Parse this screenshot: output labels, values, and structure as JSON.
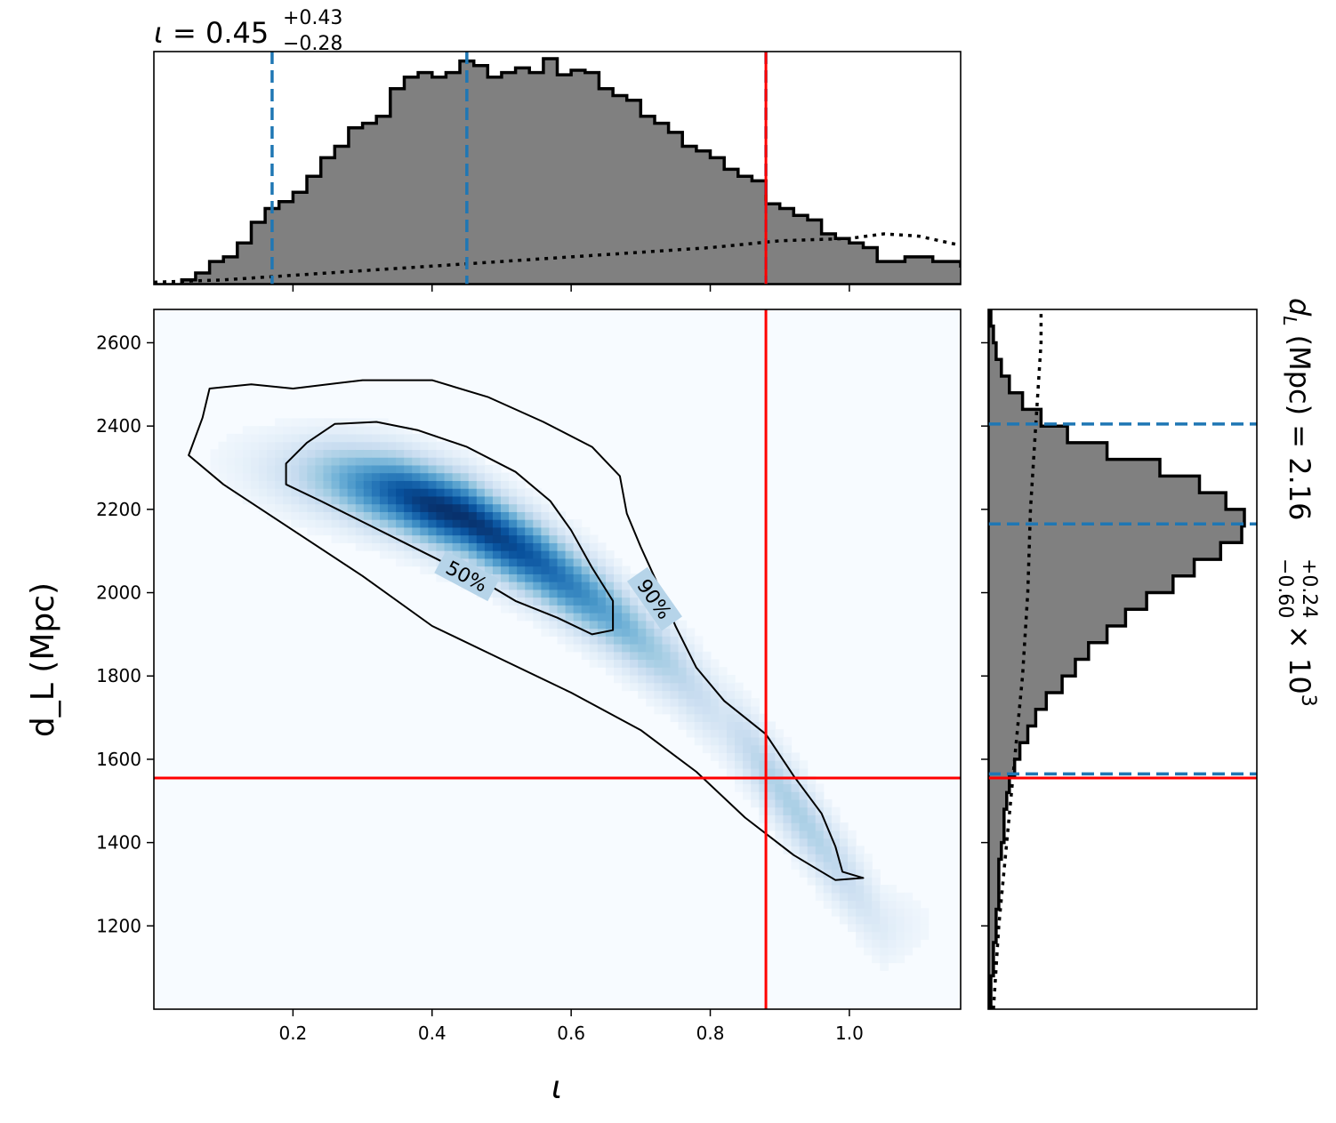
{
  "chart_data": {
    "type": "corner_plot",
    "parameters": [
      {
        "symbol": "ι",
        "range": [
          0.0,
          1.16
        ]
      },
      {
        "symbol": "d_L",
        "unit": "Mpc",
        "range": [
          1000,
          2680
        ]
      }
    ],
    "joint": {
      "type": "heatmap",
      "xlabel": "ι",
      "ylabel": "d_L (Mpc)",
      "xlim": [
        0.0,
        1.16
      ],
      "ylim": [
        1000,
        2680
      ],
      "xticks": [
        "0.2",
        "0.4",
        "0.6",
        "0.8",
        "1.0"
      ],
      "xtick_values": [
        0.2,
        0.4,
        0.6,
        0.8,
        1.0
      ],
      "yticks": [
        "1200",
        "1400",
        "1600",
        "1800",
        "2000",
        "2200",
        "2400",
        "2600"
      ],
      "ytick_values": [
        1200,
        1400,
        1600,
        1800,
        2000,
        2200,
        2400,
        2600
      ],
      "colormap": "Blues",
      "density_ridge": [
        [
          0.05,
          2330
        ],
        [
          0.15,
          2300
        ],
        [
          0.25,
          2280
        ],
        [
          0.35,
          2240
        ],
        [
          0.45,
          2180
        ],
        [
          0.55,
          2080
        ],
        [
          0.65,
          1960
        ],
        [
          0.75,
          1820
        ],
        [
          0.85,
          1640
        ],
        [
          0.95,
          1420
        ],
        [
          1.05,
          1200
        ]
      ],
      "contours": [
        {
          "label": "50%",
          "label_pos": [
            0.45,
            2040
          ],
          "label_angle": 28,
          "points": [
            [
              0.19,
              2310
            ],
            [
              0.22,
              2360
            ],
            [
              0.26,
              2405
            ],
            [
              0.32,
              2410
            ],
            [
              0.38,
              2390
            ],
            [
              0.45,
              2350
            ],
            [
              0.52,
              2290
            ],
            [
              0.57,
              2220
            ],
            [
              0.6,
              2150
            ],
            [
              0.63,
              2060
            ],
            [
              0.66,
              1980
            ],
            [
              0.66,
              1910
            ],
            [
              0.63,
              1900
            ],
            [
              0.58,
              1940
            ],
            [
              0.52,
              1980
            ],
            [
              0.47,
              2030
            ],
            [
              0.42,
              2070
            ],
            [
              0.36,
              2120
            ],
            [
              0.3,
              2170
            ],
            [
              0.24,
              2220
            ],
            [
              0.19,
              2260
            ]
          ]
        },
        {
          "label": "90%",
          "label_pos": [
            0.72,
            1985
          ],
          "label_angle": 55,
          "points": [
            [
              0.05,
              2330
            ],
            [
              0.07,
              2420
            ],
            [
              0.08,
              2490
            ],
            [
              0.14,
              2500
            ],
            [
              0.2,
              2490
            ],
            [
              0.3,
              2510
            ],
            [
              0.4,
              2510
            ],
            [
              0.48,
              2470
            ],
            [
              0.56,
              2410
            ],
            [
              0.63,
              2350
            ],
            [
              0.67,
              2280
            ],
            [
              0.68,
              2190
            ],
            [
              0.7,
              2110
            ],
            [
              0.73,
              2000
            ],
            [
              0.75,
              1920
            ],
            [
              0.78,
              1820
            ],
            [
              0.82,
              1740
            ],
            [
              0.88,
              1660
            ],
            [
              0.92,
              1560
            ],
            [
              0.96,
              1470
            ],
            [
              0.98,
              1390
            ],
            [
              0.99,
              1330
            ],
            [
              1.02,
              1315
            ],
            [
              0.98,
              1310
            ],
            [
              0.92,
              1370
            ],
            [
              0.85,
              1460
            ],
            [
              0.78,
              1570
            ],
            [
              0.7,
              1670
            ],
            [
              0.6,
              1760
            ],
            [
              0.5,
              1840
            ],
            [
              0.4,
              1920
            ],
            [
              0.3,
              2040
            ],
            [
              0.2,
              2150
            ],
            [
              0.1,
              2260
            ]
          ]
        }
      ],
      "injection": {
        "x": 0.88,
        "y": 1555,
        "color": "#ff0000"
      }
    },
    "marginal_x": {
      "type": "histogram",
      "title": "ι = 0.45",
      "title_median": "0.45",
      "title_plus": "+0.43",
      "title_minus": "−0.28",
      "bin_edges_start": 0.0,
      "bin_width": 0.02,
      "counts": [
        0.0,
        0.0,
        0.02,
        0.05,
        0.1,
        0.12,
        0.18,
        0.27,
        0.33,
        0.36,
        0.4,
        0.47,
        0.55,
        0.6,
        0.68,
        0.7,
        0.73,
        0.85,
        0.9,
        0.92,
        0.9,
        0.92,
        0.97,
        0.95,
        0.9,
        0.92,
        0.94,
        0.92,
        0.98,
        0.91,
        0.93,
        0.92,
        0.85,
        0.82,
        0.8,
        0.73,
        0.7,
        0.66,
        0.6,
        0.58,
        0.55,
        0.5,
        0.47,
        0.45,
        0.35,
        0.33,
        0.3,
        0.28,
        0.22,
        0.2,
        0.18,
        0.16,
        0.1,
        0.1,
        0.12,
        0.12,
        0.1,
        0.1,
        0.08,
        0.08,
        0.06,
        0.05,
        0.03,
        0.03,
        0.02,
        0.02,
        0.01
      ],
      "prior_dotted": [
        [
          0.0,
          0.01
        ],
        [
          0.1,
          0.02
        ],
        [
          0.2,
          0.04
        ],
        [
          0.3,
          0.06
        ],
        [
          0.4,
          0.08
        ],
        [
          0.5,
          0.1
        ],
        [
          0.6,
          0.12
        ],
        [
          0.7,
          0.14
        ],
        [
          0.8,
          0.16
        ],
        [
          0.9,
          0.19
        ],
        [
          1.0,
          0.2
        ],
        [
          1.05,
          0.22
        ],
        [
          1.1,
          0.21
        ],
        [
          1.13,
          0.19
        ],
        [
          1.16,
          0.17
        ]
      ],
      "quantiles": [
        0.17,
        0.45,
        0.88
      ],
      "injection": 0.88
    },
    "marginal_y": {
      "type": "histogram",
      "title": "d_L (Mpc) = 2.16 × 10^3",
      "title_median": "2.16",
      "title_plus": "+0.24",
      "title_minus": "−0.60",
      "title_scale": "× 10",
      "title_scale_exp": "3",
      "bin_edges_start": 1000,
      "bin_width": 40,
      "counts": [
        0.01,
        0.01,
        0.02,
        0.02,
        0.03,
        0.03,
        0.04,
        0.04,
        0.04,
        0.05,
        0.06,
        0.06,
        0.07,
        0.08,
        0.1,
        0.12,
        0.15,
        0.18,
        0.22,
        0.28,
        0.33,
        0.38,
        0.45,
        0.52,
        0.6,
        0.7,
        0.78,
        0.88,
        0.96,
        0.97,
        0.9,
        0.8,
        0.65,
        0.45,
        0.3,
        0.2,
        0.13,
        0.08,
        0.05,
        0.03,
        0.02,
        0.01
      ],
      "prior_dotted": [
        [
          1000,
          0.02
        ],
        [
          1100,
          0.03
        ],
        [
          1200,
          0.04
        ],
        [
          1400,
          0.07
        ],
        [
          1600,
          0.1
        ],
        [
          1800,
          0.13
        ],
        [
          2000,
          0.15
        ],
        [
          2200,
          0.16
        ],
        [
          2400,
          0.18
        ],
        [
          2600,
          0.2
        ],
        [
          2680,
          0.2
        ]
      ],
      "quantiles": [
        1565,
        2165,
        2405
      ],
      "injection": 1555
    },
    "colors": {
      "hist_fill": "#808080",
      "hist_edge": "#000000",
      "quantile": "#1f77b4",
      "injection": "#ff0000",
      "contour": "#000000"
    }
  }
}
